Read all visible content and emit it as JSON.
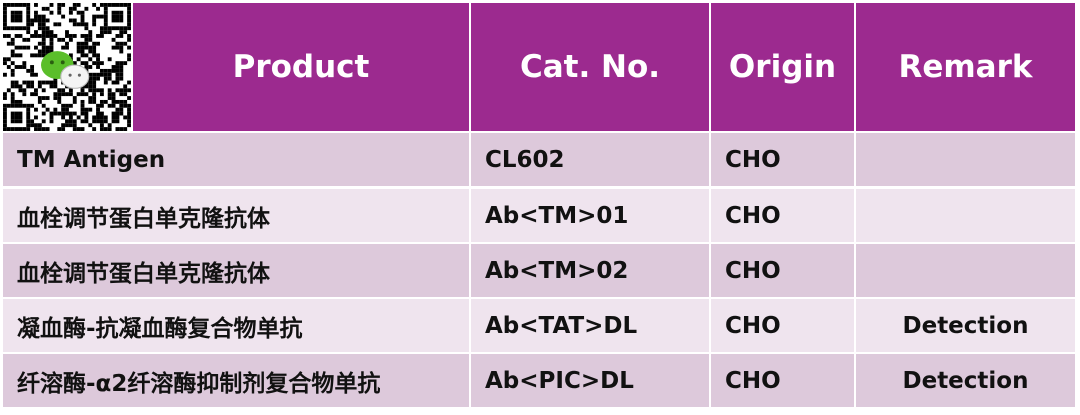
{
  "qr_code": {
    "icon": "wechat-qr-code-icon",
    "logo": "wechat-logo"
  },
  "colors": {
    "header": "#9C2A8F",
    "row_odd": "#DDC9DB",
    "row_even": "#EFE4EE",
    "header_text": "#FFFFFF"
  },
  "header": {
    "product": "Product",
    "cat_no": "Cat. No.",
    "origin": "Origin",
    "remark": "Remark"
  },
  "rows": [
    {
      "product": "TM Antigen",
      "cat_no": "CL602",
      "origin": "CHO",
      "remark": ""
    },
    {
      "product": "血栓调节蛋白单克隆抗体",
      "cat_no": "Ab<TM>01",
      "origin": "CHO",
      "remark": ""
    },
    {
      "product": "血栓调节蛋白单克隆抗体",
      "cat_no": "Ab<TM>02",
      "origin": "CHO",
      "remark": ""
    },
    {
      "product": "凝血酶-抗凝血酶复合物单抗",
      "cat_no": "Ab<TAT>DL",
      "origin": "CHO",
      "remark": "Detection"
    },
    {
      "product": "纤溶酶-α2纤溶酶抑制剂复合物单抗",
      "cat_no": "Ab<PIC>DL",
      "origin": "CHO",
      "remark": "Detection"
    }
  ]
}
